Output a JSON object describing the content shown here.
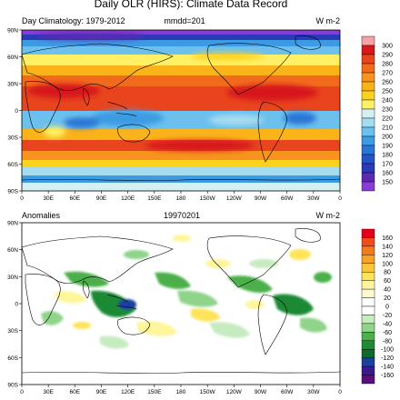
{
  "figure": {
    "title": "Daily OLR (HIRS): Climate Data Record"
  },
  "top_panel": {
    "left_label": "Day Climatology: 1979-2012",
    "center_label": "mmdd=201",
    "units": "W m-2",
    "lat_labels": [
      "90N",
      "60N",
      "30N",
      "0",
      "30S",
      "60S",
      "90S"
    ],
    "lon_labels": [
      "0",
      "30E",
      "60E",
      "90E",
      "120E",
      "150E",
      "180",
      "150W",
      "120W",
      "90W",
      "60W",
      "30W",
      "0"
    ],
    "colorbar": {
      "labels": [
        "300",
        "290",
        "280",
        "270",
        "260",
        "250",
        "240",
        "230",
        "220",
        "210",
        "200",
        "190",
        "180",
        "170",
        "160",
        "150"
      ],
      "colors": [
        "#f4a3a8",
        "#d7191c",
        "#e8451e",
        "#f26b1d",
        "#f7931e",
        "#fbb31a",
        "#fdd21e",
        "#fff065",
        "#d4f0f0",
        "#a6dcf0",
        "#6cc0ee",
        "#3d9be3",
        "#2a76d4",
        "#2355c4",
        "#2a3ab8",
        "#5a2bb0",
        "#8a3ad6"
      ]
    }
  },
  "bottom_panel": {
    "left_label": "Anomalies",
    "center_label": "19970201",
    "units": "W m-2",
    "lat_labels": [
      "90N",
      "60N",
      "30N",
      "0",
      "30S",
      "60S",
      "90S"
    ],
    "lon_labels": [
      "0",
      "30E",
      "60E",
      "90E",
      "120E",
      "150E",
      "180",
      "150W",
      "120W",
      "90W",
      "60W",
      "30W",
      "0"
    ],
    "colorbar": {
      "labels": [
        "160",
        "140",
        "120",
        "100",
        "80",
        "60",
        "40",
        "20",
        "0",
        "-20",
        "-40",
        "-60",
        "-80",
        "-100",
        "-120",
        "-140",
        "-160"
      ],
      "colors": [
        "#e3001b",
        "#f04d1f",
        "#f47a20",
        "#f8a128",
        "#fbc53b",
        "#fde45a",
        "#fff59a",
        "#fffbd0",
        "#ffffff",
        "#ffffff",
        "#c7ebc1",
        "#8fd48a",
        "#4bb04a",
        "#1f8a36",
        "#0f6b2c",
        "#1a3f9e",
        "#3a1b8c",
        "#5b0e7c"
      ]
    }
  }
}
